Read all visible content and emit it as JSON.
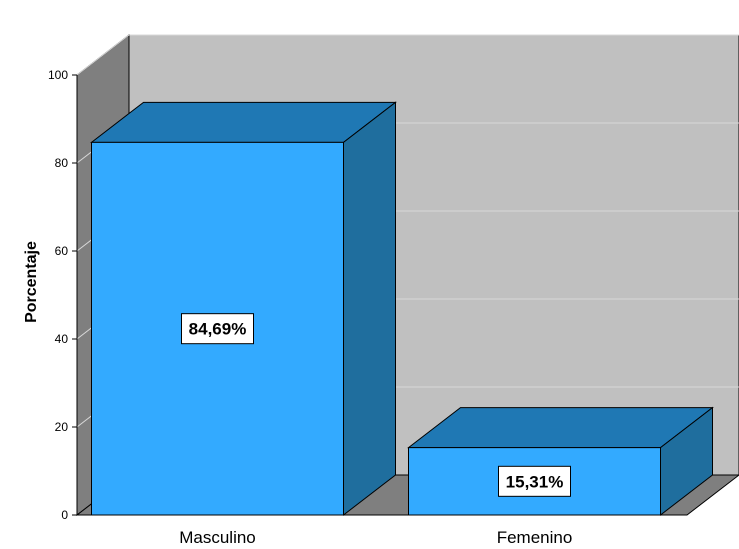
{
  "chart_data": {
    "type": "bar",
    "categories": [
      "Masculino",
      "Femenino"
    ],
    "values": [
      84.69,
      15.31
    ],
    "data_labels": [
      "84,69%",
      "15,31%"
    ],
    "xlabel": "",
    "ylabel": "Porcentaje",
    "ylim": [
      0,
      100
    ],
    "yticks": [
      0,
      20,
      40,
      60,
      80,
      100
    ],
    "style": "3d",
    "grid": true,
    "legend": "none",
    "colors": {
      "bar_front": "#33aaff",
      "bar_top": "#1f78b4",
      "bar_side": "#1f6e9e",
      "back_wall": "#c0c0c0",
      "side_wall": "#7f7f7f",
      "floor": "#7f7f7f",
      "gridline": "#d9d9d9"
    }
  }
}
